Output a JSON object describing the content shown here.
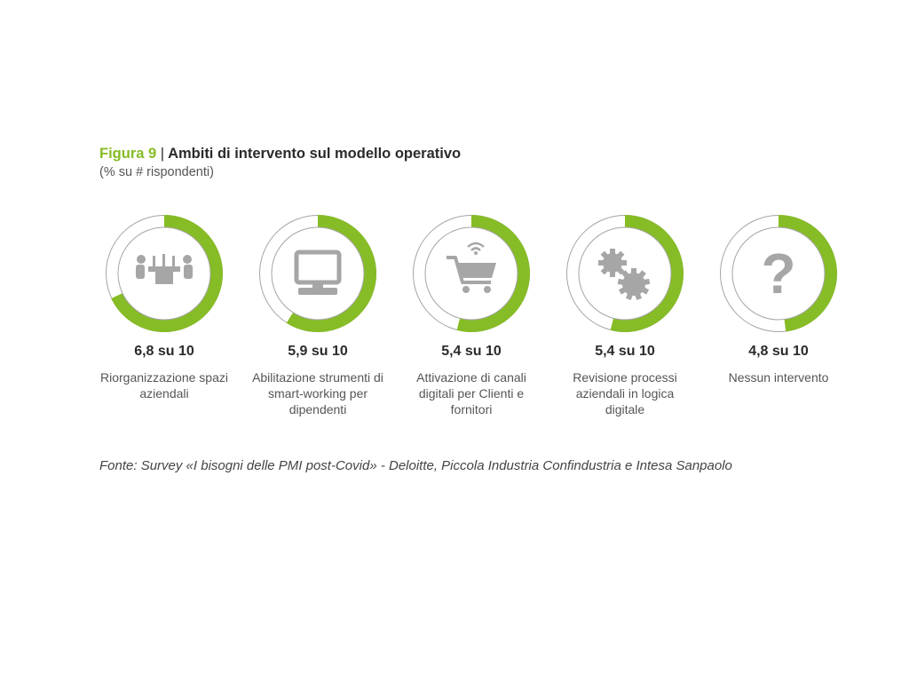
{
  "figure": {
    "number_label": "Figura 9",
    "separator": "|",
    "title": "Ambiti di intervento sul modello operativo",
    "subtitle": "(% su # rispondenti)"
  },
  "colors": {
    "accent": "#86bc25",
    "ring_bg": "#ffffff",
    "ring_border": "#a5a5a5",
    "icon": "#a6a6a6"
  },
  "chart_data": {
    "type": "pie",
    "max": 10,
    "items": [
      {
        "value": 6.8,
        "value_label": "6,8 su 10",
        "label": "Riorganizzazione spazi aziendali",
        "icon": "meeting-table-icon"
      },
      {
        "value": 5.9,
        "value_label": "5,9 su 10",
        "label": "Abilitazione strumenti di smart-working per dipendenti",
        "icon": "computer-monitor-icon"
      },
      {
        "value": 5.4,
        "value_label": "5,4 su 10",
        "label": "Attivazione di canali digitali per Clienti e fornitori",
        "icon": "shopping-cart-icon"
      },
      {
        "value": 5.4,
        "value_label": "5,4 su 10",
        "label": "Revisione processi aziendali in logica digitale",
        "icon": "gears-icon"
      },
      {
        "value": 4.8,
        "value_label": "4,8 su 10",
        "label": "Nessun intervento",
        "icon": "question-mark-icon"
      }
    ]
  },
  "source": "Fonte: Survey «I bisogni delle PMI post-Covid» - Deloitte, Piccola Industria Confindustria e Intesa Sanpaolo"
}
